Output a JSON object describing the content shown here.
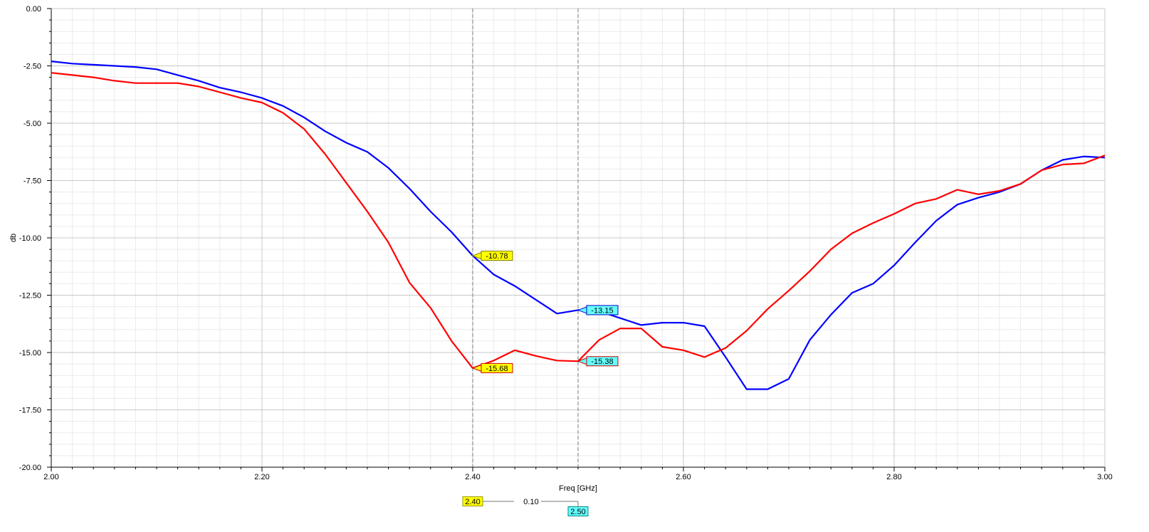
{
  "chart_data": {
    "type": "line",
    "title": "",
    "xlabel": "Freq [GHz]",
    "ylabel": "db",
    "xlim": [
      2.0,
      3.0
    ],
    "ylim": [
      -20.0,
      0.0
    ],
    "x_ticks": [
      "2.00",
      "2.20",
      "2.40",
      "2.60",
      "2.80",
      "3.00"
    ],
    "y_ticks": [
      "0.00",
      "-2.50",
      "-5.00",
      "-7.50",
      "-10.00",
      "-12.50",
      "-15.00",
      "-17.50",
      "-20.00"
    ],
    "grid": true,
    "series": [
      {
        "color": "#0000ff",
        "points": [
          [
            2.0,
            -2.3
          ],
          [
            2.02,
            -2.4
          ],
          [
            2.04,
            -2.45
          ],
          [
            2.06,
            -2.5
          ],
          [
            2.08,
            -2.55
          ],
          [
            2.1,
            -2.65
          ],
          [
            2.12,
            -2.9
          ],
          [
            2.14,
            -3.15
          ],
          [
            2.16,
            -3.45
          ],
          [
            2.18,
            -3.65
          ],
          [
            2.2,
            -3.9
          ],
          [
            2.22,
            -4.25
          ],
          [
            2.24,
            -4.75
          ],
          [
            2.26,
            -5.35
          ],
          [
            2.28,
            -5.85
          ],
          [
            2.3,
            -6.25
          ],
          [
            2.32,
            -6.95
          ],
          [
            2.34,
            -7.85
          ],
          [
            2.36,
            -8.85
          ],
          [
            2.38,
            -9.75
          ],
          [
            2.4,
            -10.78
          ],
          [
            2.42,
            -11.6
          ],
          [
            2.44,
            -12.1
          ],
          [
            2.46,
            -12.7
          ],
          [
            2.48,
            -13.3
          ],
          [
            2.5,
            -13.15
          ],
          [
            2.52,
            -13.2
          ],
          [
            2.54,
            -13.5
          ],
          [
            2.56,
            -13.8
          ],
          [
            2.58,
            -13.7
          ],
          [
            2.6,
            -13.7
          ],
          [
            2.62,
            -13.85
          ],
          [
            2.64,
            -15.2
          ],
          [
            2.66,
            -16.6
          ],
          [
            2.68,
            -16.6
          ],
          [
            2.7,
            -16.15
          ],
          [
            2.72,
            -14.45
          ],
          [
            2.74,
            -13.35
          ],
          [
            2.76,
            -12.4
          ],
          [
            2.78,
            -12.0
          ],
          [
            2.8,
            -11.2
          ],
          [
            2.82,
            -10.2
          ],
          [
            2.84,
            -9.25
          ],
          [
            2.86,
            -8.55
          ],
          [
            2.88,
            -8.25
          ],
          [
            2.9,
            -8.0
          ],
          [
            2.92,
            -7.65
          ],
          [
            2.94,
            -7.05
          ],
          [
            2.96,
            -6.6
          ],
          [
            2.98,
            -6.45
          ],
          [
            3.0,
            -6.5
          ]
        ]
      },
      {
        "color": "#ff0000",
        "points": [
          [
            2.0,
            -2.8
          ],
          [
            2.02,
            -2.9
          ],
          [
            2.04,
            -3.0
          ],
          [
            2.06,
            -3.15
          ],
          [
            2.08,
            -3.25
          ],
          [
            2.1,
            -3.25
          ],
          [
            2.12,
            -3.25
          ],
          [
            2.14,
            -3.4
          ],
          [
            2.16,
            -3.65
          ],
          [
            2.18,
            -3.9
          ],
          [
            2.2,
            -4.1
          ],
          [
            2.22,
            -4.55
          ],
          [
            2.24,
            -5.25
          ],
          [
            2.26,
            -6.35
          ],
          [
            2.28,
            -7.6
          ],
          [
            2.3,
            -8.85
          ],
          [
            2.32,
            -10.2
          ],
          [
            2.34,
            -11.95
          ],
          [
            2.36,
            -13.05
          ],
          [
            2.38,
            -14.5
          ],
          [
            2.4,
            -15.68
          ],
          [
            2.42,
            -15.35
          ],
          [
            2.44,
            -14.9
          ],
          [
            2.46,
            -15.15
          ],
          [
            2.48,
            -15.35
          ],
          [
            2.5,
            -15.38
          ],
          [
            2.52,
            -14.45
          ],
          [
            2.54,
            -13.95
          ],
          [
            2.56,
            -13.95
          ],
          [
            2.58,
            -14.75
          ],
          [
            2.6,
            -14.9
          ],
          [
            2.62,
            -15.2
          ],
          [
            2.64,
            -14.8
          ],
          [
            2.66,
            -14.05
          ],
          [
            2.68,
            -13.1
          ],
          [
            2.7,
            -12.3
          ],
          [
            2.72,
            -11.45
          ],
          [
            2.74,
            -10.5
          ],
          [
            2.76,
            -9.8
          ],
          [
            2.78,
            -9.35
          ],
          [
            2.8,
            -8.95
          ],
          [
            2.82,
            -8.5
          ],
          [
            2.84,
            -8.3
          ],
          [
            2.86,
            -7.9
          ],
          [
            2.88,
            -8.1
          ],
          [
            2.9,
            -7.95
          ],
          [
            2.92,
            -7.65
          ],
          [
            2.94,
            -7.05
          ],
          [
            2.96,
            -6.8
          ],
          [
            2.98,
            -6.75
          ],
          [
            3.0,
            -6.4
          ]
        ]
      }
    ],
    "markers": [
      {
        "x": 2.4,
        "x_label": "2.40",
        "line_color": "#777777",
        "label_bg": "#ffff00",
        "label_border": "#999900",
        "values": [
          {
            "series": 0,
            "y": -10.78,
            "label": "-10.78",
            "bg": "#ffff00",
            "border": "#808000"
          },
          {
            "series": 1,
            "y": -15.68,
            "label": "-15.68",
            "bg": "#ffff00",
            "border": "#cc0000"
          }
        ]
      },
      {
        "x": 2.5,
        "x_label": "2.50",
        "line_color": "#777777",
        "label_bg": "#66ffff",
        "label_border": "#008888",
        "values": [
          {
            "series": 0,
            "y": -13.15,
            "label": "-13.15",
            "bg": "#66ffff",
            "border": "#0000cc"
          },
          {
            "series": 1,
            "y": -15.38,
            "label": "-15.38",
            "bg": "#66ffff",
            "border": "#cc0000"
          }
        ]
      }
    ],
    "delta_label": "0.10"
  }
}
